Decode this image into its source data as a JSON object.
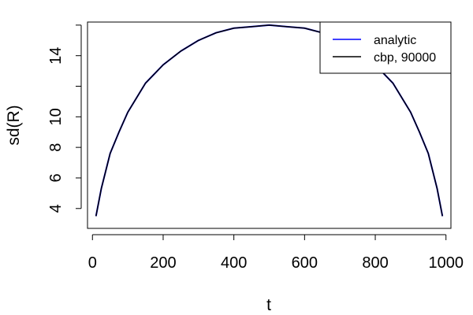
{
  "chart_data": {
    "type": "line",
    "title": "",
    "xlabel": "t",
    "ylabel": "sd(R)",
    "xlim": [
      -14,
      1014
    ],
    "ylim": [
      2.7,
      16.2
    ],
    "x_ticks": [
      0,
      200,
      400,
      600,
      800,
      1000
    ],
    "x_tick_labels": [
      "0",
      "200",
      "400",
      "600",
      "800",
      "1000"
    ],
    "y_ticks": [
      4,
      6,
      8,
      10,
      12,
      14,
      16
    ],
    "y_tick_labels": [
      "4",
      "6",
      "8",
      "10",
      "",
      "14",
      ""
    ],
    "grid": false,
    "legend_position": "top-right",
    "series": [
      {
        "name": "analytic",
        "color": "#0000ff",
        "x": [
          10,
          25,
          50,
          75,
          100,
          150,
          200,
          250,
          300,
          350,
          400,
          450,
          500,
          550,
          600,
          650,
          700,
          750,
          800,
          850,
          900,
          925,
          950,
          975,
          990
        ],
        "y": [
          3.5,
          5.3,
          7.6,
          9.0,
          10.3,
          12.2,
          13.4,
          14.3,
          15.0,
          15.5,
          15.8,
          15.9,
          16.0,
          15.9,
          15.8,
          15.5,
          15.0,
          14.3,
          13.4,
          12.2,
          10.3,
          9.0,
          7.6,
          5.3,
          3.5
        ]
      },
      {
        "name": "cbp, 90000",
        "color": "#000000",
        "x": [
          10,
          25,
          50,
          75,
          100,
          150,
          200,
          250,
          300,
          350,
          400,
          450,
          500,
          550,
          600,
          650,
          700,
          750,
          800,
          850,
          900,
          925,
          950,
          975,
          990
        ],
        "y": [
          3.5,
          5.3,
          7.6,
          9.0,
          10.3,
          12.2,
          13.4,
          14.3,
          15.0,
          15.5,
          15.8,
          15.9,
          16.0,
          15.9,
          15.8,
          15.5,
          15.0,
          14.3,
          13.4,
          12.2,
          10.3,
          9.0,
          7.6,
          5.3,
          3.5
        ]
      }
    ]
  }
}
